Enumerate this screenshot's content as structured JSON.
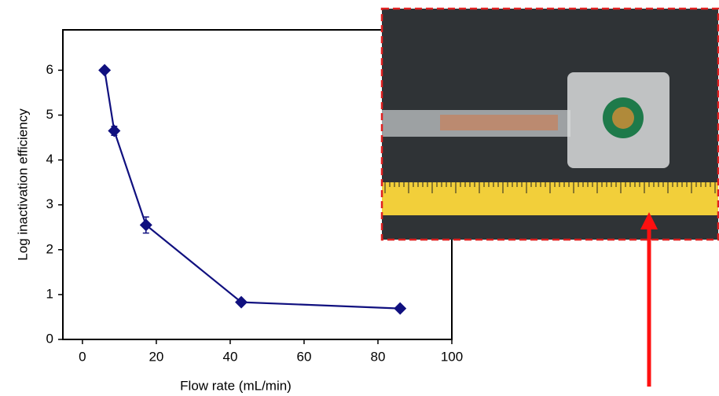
{
  "chart_data": {
    "type": "line",
    "x_label": "Flow rate (mL/min)",
    "y_label": "Log inactivation efficiency",
    "x": [
      6,
      8.6,
      17.2,
      43,
      86
    ],
    "series": [
      {
        "color": "#10107f",
        "values": [
          6.0,
          4.65,
          2.55,
          0.83,
          0.69
        ],
        "errors": [
          0.05,
          0.1,
          0.18,
          0.05,
          0.05
        ]
      }
    ],
    "xlim": [
      -5.3,
      100
    ],
    "xticks": [
      0,
      20,
      40,
      60,
      80,
      100
    ],
    "ylim": [
      0,
      6.9
    ],
    "yticks": [
      0,
      1,
      2,
      3,
      4,
      5,
      6
    ]
  }
}
